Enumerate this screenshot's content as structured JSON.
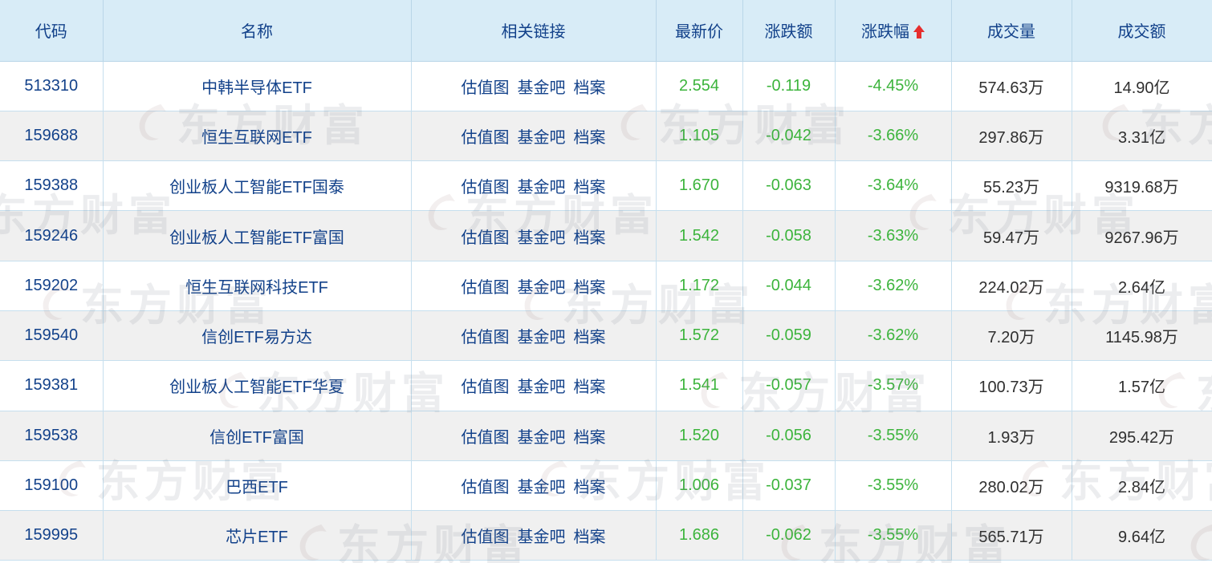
{
  "watermark": {
    "text": "东方财富"
  },
  "colors": {
    "header_bg": "#d8ecf7",
    "navy_text": "#12418a",
    "down_green": "#3cb43c",
    "value_dark": "#2f2f2f",
    "sort_arrow_red": "#e62e2e",
    "row_alt_bg": "#f0f0f0",
    "border_blue": "#b9d6e8"
  },
  "table": {
    "columns": [
      {
        "key": "code",
        "label": "代码"
      },
      {
        "key": "name",
        "label": "名称"
      },
      {
        "key": "links",
        "label": "相关链接"
      },
      {
        "key": "price",
        "label": "最新价"
      },
      {
        "key": "change",
        "label": "涨跌额"
      },
      {
        "key": "pct",
        "label": "涨跌幅",
        "sort_icon": "arrow-up-red"
      },
      {
        "key": "volume",
        "label": "成交量"
      },
      {
        "key": "amount",
        "label": "成交额"
      }
    ],
    "links_labels": [
      "估值图",
      "基金吧",
      "档案"
    ],
    "rows": [
      {
        "code": "513310",
        "name": "中韩半导体ETF",
        "price": "2.554",
        "change": "-0.119",
        "pct": "-4.45%",
        "volume": "574.63万",
        "amount": "14.90亿"
      },
      {
        "code": "159688",
        "name": "恒生互联网ETF",
        "price": "1.105",
        "change": "-0.042",
        "pct": "-3.66%",
        "volume": "297.86万",
        "amount": "3.31亿"
      },
      {
        "code": "159388",
        "name": "创业板人工智能ETF国泰",
        "price": "1.670",
        "change": "-0.063",
        "pct": "-3.64%",
        "volume": "55.23万",
        "amount": "9319.68万"
      },
      {
        "code": "159246",
        "name": "创业板人工智能ETF富国",
        "price": "1.542",
        "change": "-0.058",
        "pct": "-3.63%",
        "volume": "59.47万",
        "amount": "9267.96万"
      },
      {
        "code": "159202",
        "name": "恒生互联网科技ETF",
        "price": "1.172",
        "change": "-0.044",
        "pct": "-3.62%",
        "volume": "224.02万",
        "amount": "2.64亿"
      },
      {
        "code": "159540",
        "name": "信创ETF易方达",
        "price": "1.572",
        "change": "-0.059",
        "pct": "-3.62%",
        "volume": "7.20万",
        "amount": "1145.98万"
      },
      {
        "code": "159381",
        "name": "创业板人工智能ETF华夏",
        "price": "1.541",
        "change": "-0.057",
        "pct": "-3.57%",
        "volume": "100.73万",
        "amount": "1.57亿"
      },
      {
        "code": "159538",
        "name": "信创ETF富国",
        "price": "1.520",
        "change": "-0.056",
        "pct": "-3.55%",
        "volume": "1.93万",
        "amount": "295.42万"
      },
      {
        "code": "159100",
        "name": "巴西ETF",
        "price": "1.006",
        "change": "-0.037",
        "pct": "-3.55%",
        "volume": "280.02万",
        "amount": "2.84亿"
      },
      {
        "code": "159995",
        "name": "芯片ETF",
        "price": "1.686",
        "change": "-0.062",
        "pct": "-3.55%",
        "volume": "565.71万",
        "amount": "9.64亿"
      }
    ]
  }
}
